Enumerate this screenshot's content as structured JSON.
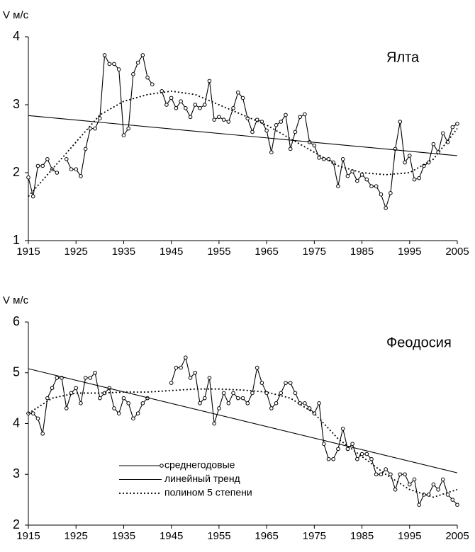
{
  "chart_data": [
    {
      "type": "line",
      "ylabel": "V м/с",
      "annotation": "Ялта",
      "x": [
        1915,
        1916,
        1917,
        1918,
        1919,
        1920,
        1921,
        1922,
        1923,
        1924,
        1925,
        1926,
        1927,
        1928,
        1929,
        1930,
        1931,
        1932,
        1933,
        1934,
        1935,
        1936,
        1937,
        1938,
        1939,
        1940,
        1941,
        1942,
        1943,
        1944,
        1945,
        1946,
        1947,
        1948,
        1949,
        1950,
        1951,
        1952,
        1953,
        1954,
        1955,
        1956,
        1957,
        1958,
        1959,
        1960,
        1961,
        1962,
        1963,
        1964,
        1965,
        1966,
        1967,
        1968,
        1969,
        1970,
        1971,
        1972,
        1973,
        1974,
        1975,
        1976,
        1977,
        1978,
        1979,
        1980,
        1981,
        1982,
        1983,
        1984,
        1985,
        1986,
        1987,
        1988,
        1989,
        1990,
        1991,
        1992,
        1993,
        1994,
        1995,
        1996,
        1997,
        1998,
        1999,
        2000,
        2001,
        2002,
        2003,
        2004,
        2005
      ],
      "series": [
        {
          "style": "markers",
          "color": "#000000",
          "values": [
            1.93,
            1.65,
            2.1,
            2.1,
            2.2,
            2.05,
            2.0,
            null,
            2.2,
            2.05,
            2.05,
            1.95,
            2.35,
            2.65,
            2.65,
            2.8,
            3.73,
            3.6,
            3.6,
            3.52,
            2.55,
            2.65,
            3.45,
            3.62,
            3.73,
            3.4,
            3.3,
            null,
            3.2,
            3.0,
            3.1,
            2.95,
            3.05,
            2.95,
            2.82,
            3.0,
            2.95,
            3.0,
            3.35,
            2.78,
            2.82,
            2.78,
            2.75,
            2.95,
            3.18,
            3.1,
            2.8,
            2.6,
            2.78,
            2.75,
            2.62,
            2.3,
            2.7,
            2.75,
            2.85,
            2.35,
            2.6,
            2.82,
            2.86,
            2.45,
            2.4,
            2.22,
            2.2,
            2.2,
            2.15,
            1.8,
            2.2,
            1.95,
            2.02,
            1.88,
            1.97,
            1.9,
            1.8,
            1.8,
            1.68,
            1.48,
            1.7,
            2.35,
            2.75,
            2.15,
            2.25,
            1.9,
            1.92,
            2.1,
            2.15,
            2.42,
            2.3,
            2.58,
            2.45,
            2.67,
            2.72
          ]
        },
        {
          "style": "solid",
          "color": "#000000",
          "x": [
            1915,
            2005
          ],
          "values": [
            2.84,
            2.25
          ]
        },
        {
          "style": "dotted",
          "color": "#000000",
          "x": [
            1915,
            1920,
            1925,
            1930,
            1935,
            1940,
            1945,
            1950,
            1955,
            1960,
            1965,
            1970,
            1975,
            1980,
            1985,
            1990,
            1995,
            2000,
            2005
          ],
          "values": [
            1.65,
            2.05,
            2.45,
            2.85,
            3.05,
            3.15,
            3.2,
            3.15,
            3.0,
            2.85,
            2.7,
            2.5,
            2.3,
            2.1,
            2.0,
            1.97,
            2.0,
            2.2,
            2.65
          ]
        }
      ],
      "xlim": [
        1915,
        2005
      ],
      "xticks": [
        1915,
        1925,
        1935,
        1945,
        1955,
        1965,
        1975,
        1985,
        1995,
        2005
      ],
      "ylim": [
        1,
        4
      ],
      "yticks": [
        1,
        2,
        3,
        4
      ],
      "grid": false
    },
    {
      "type": "line",
      "ylabel": "V м/с",
      "annotation": "Феодосия",
      "x": [
        1915,
        1916,
        1917,
        1918,
        1919,
        1920,
        1921,
        1922,
        1923,
        1924,
        1925,
        1926,
        1927,
        1928,
        1929,
        1930,
        1931,
        1932,
        1933,
        1934,
        1935,
        1936,
        1937,
        1938,
        1939,
        1940,
        1941,
        1942,
        1943,
        1944,
        1945,
        1946,
        1947,
        1948,
        1949,
        1950,
        1951,
        1952,
        1953,
        1954,
        1955,
        1956,
        1957,
        1958,
        1959,
        1960,
        1961,
        1962,
        1963,
        1964,
        1965,
        1966,
        1967,
        1968,
        1969,
        1970,
        1971,
        1972,
        1973,
        1974,
        1975,
        1976,
        1977,
        1978,
        1979,
        1980,
        1981,
        1982,
        1983,
        1984,
        1985,
        1986,
        1987,
        1988,
        1989,
        1990,
        1991,
        1992,
        1993,
        1994,
        1995,
        1996,
        1997,
        1998,
        1999,
        2000,
        2001,
        2002,
        2003,
        2004,
        2005
      ],
      "series": [
        {
          "name": "среднегодовые",
          "style": "markers",
          "color": "#000000",
          "values": [
            4.2,
            4.2,
            4.1,
            3.8,
            4.5,
            4.7,
            4.9,
            4.9,
            4.3,
            4.6,
            4.7,
            4.4,
            4.9,
            4.9,
            5.0,
            4.5,
            4.6,
            4.7,
            4.3,
            4.2,
            4.5,
            4.4,
            4.1,
            4.2,
            4.4,
            4.5,
            null,
            null,
            null,
            null,
            4.8,
            5.1,
            5.1,
            5.3,
            4.9,
            5.0,
            4.4,
            4.5,
            4.9,
            4.0,
            4.3,
            4.6,
            4.4,
            4.6,
            4.5,
            4.5,
            4.4,
            4.6,
            5.1,
            4.8,
            4.6,
            4.3,
            4.4,
            4.6,
            4.8,
            4.8,
            4.6,
            4.4,
            4.4,
            4.3,
            4.2,
            4.4,
            3.6,
            3.3,
            3.3,
            3.5,
            3.9,
            3.5,
            3.6,
            3.3,
            3.4,
            3.4,
            3.3,
            3.0,
            3.0,
            3.1,
            3.0,
            2.7,
            3.0,
            3.0,
            2.8,
            2.9,
            2.4,
            2.6,
            2.6,
            2.8,
            2.7,
            2.9,
            2.6,
            2.5,
            2.4
          ]
        },
        {
          "name": "линейный тренд",
          "style": "solid",
          "color": "#000000",
          "x": [
            1915,
            2005
          ],
          "values": [
            5.08,
            3.03
          ]
        },
        {
          "name": "полином 5 степени",
          "style": "dotted",
          "color": "#000000",
          "x": [
            1915,
            1920,
            1925,
            1930,
            1935,
            1940,
            1945,
            1950,
            1955,
            1960,
            1965,
            1970,
            1975,
            1980,
            1985,
            1990,
            1995,
            2000,
            2005
          ],
          "values": [
            4.2,
            4.5,
            4.6,
            4.6,
            4.62,
            4.62,
            4.65,
            4.68,
            4.68,
            4.66,
            4.62,
            4.5,
            4.2,
            3.7,
            3.35,
            3.0,
            2.7,
            2.55,
            2.7
          ]
        }
      ],
      "xlim": [
        1915,
        2005
      ],
      "xticks": [
        1915,
        1925,
        1935,
        1945,
        1955,
        1965,
        1975,
        1985,
        1995,
        2005
      ],
      "ylim": [
        2,
        6
      ],
      "yticks": [
        2,
        3,
        4,
        5,
        6
      ],
      "grid": false
    }
  ]
}
